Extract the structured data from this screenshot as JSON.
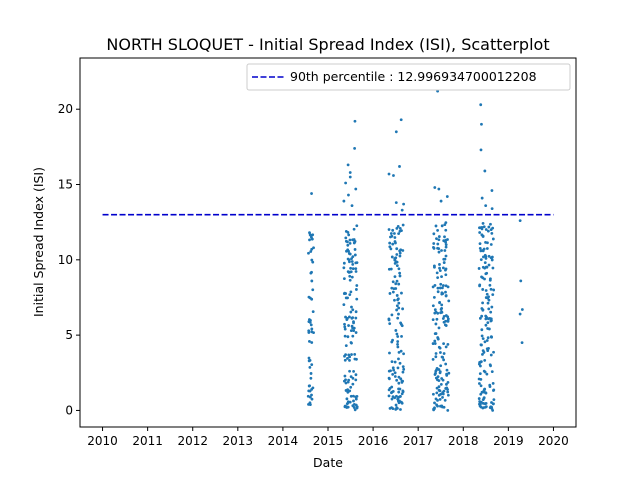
{
  "chart_data": {
    "type": "scatter",
    "title": "NORTH SLOQUET - Initial Spread Index (ISI), Scatterplot",
    "xlabel": "Date",
    "ylabel": "Initial Spread Index (ISI)",
    "xlim": [
      2009.5,
      2020.5
    ],
    "ylim": [
      -1.1,
      23.4
    ],
    "xticks": [
      "2010",
      "2011",
      "2012",
      "2013",
      "2014",
      "2015",
      "2016",
      "2017",
      "2018",
      "2019",
      "2020"
    ],
    "xtick_values": [
      2010,
      2011,
      2012,
      2013,
      2014,
      2015,
      2016,
      2017,
      2018,
      2019,
      2020
    ],
    "yticks": [
      "0",
      "5",
      "10",
      "15",
      "20"
    ],
    "ytick_values": [
      0,
      5,
      10,
      15,
      20
    ],
    "grid": false,
    "legend": {
      "placement": "top-right",
      "entries": [
        {
          "label": "90th percentile : 12.996934700012208",
          "style": "dashed",
          "color": "#0000cc"
        }
      ]
    },
    "reference_line": {
      "y": 12.996934700012208,
      "x_start": 2010.0,
      "x_end": 2020.0,
      "color": "#0000cc",
      "style": "dashed"
    },
    "series": [
      {
        "color": "#1f77b4",
        "seasons": [
          {
            "x_start": 2014.55,
            "x_end": 2014.68,
            "n": 55,
            "y_points": [
              14.4,
              11.8,
              11.5,
              10.8,
              10.7,
              1.4,
              1.3,
              1.5
            ]
          },
          {
            "x_start": 2015.35,
            "x_end": 2015.65,
            "n": 150,
            "y_points": [
              19.2,
              17.4,
              16.3,
              15.8,
              15.5,
              15.1,
              14.7,
              14.3,
              13.9,
              13.6
            ]
          },
          {
            "x_start": 2016.35,
            "x_end": 2016.68,
            "n": 150,
            "y_points": [
              19.3,
              18.5,
              16.2,
              15.7,
              15.6,
              13.8,
              13.7,
              13.3
            ]
          },
          {
            "x_start": 2017.33,
            "x_end": 2017.68,
            "n": 170,
            "y_points": [
              21.2,
              14.8,
              14.7,
              14.2,
              13.9
            ]
          },
          {
            "x_start": 2018.35,
            "x_end": 2018.68,
            "n": 170,
            "y_points": [
              20.3,
              19.0,
              17.3,
              15.9,
              14.6,
              14.1,
              13.6,
              13.4
            ]
          },
          {
            "x_start": 2019.25,
            "x_end": 2019.35,
            "n": 5,
            "y_points": [
              12.6,
              8.6,
              6.7,
              6.4,
              4.5
            ]
          }
        ]
      }
    ]
  }
}
